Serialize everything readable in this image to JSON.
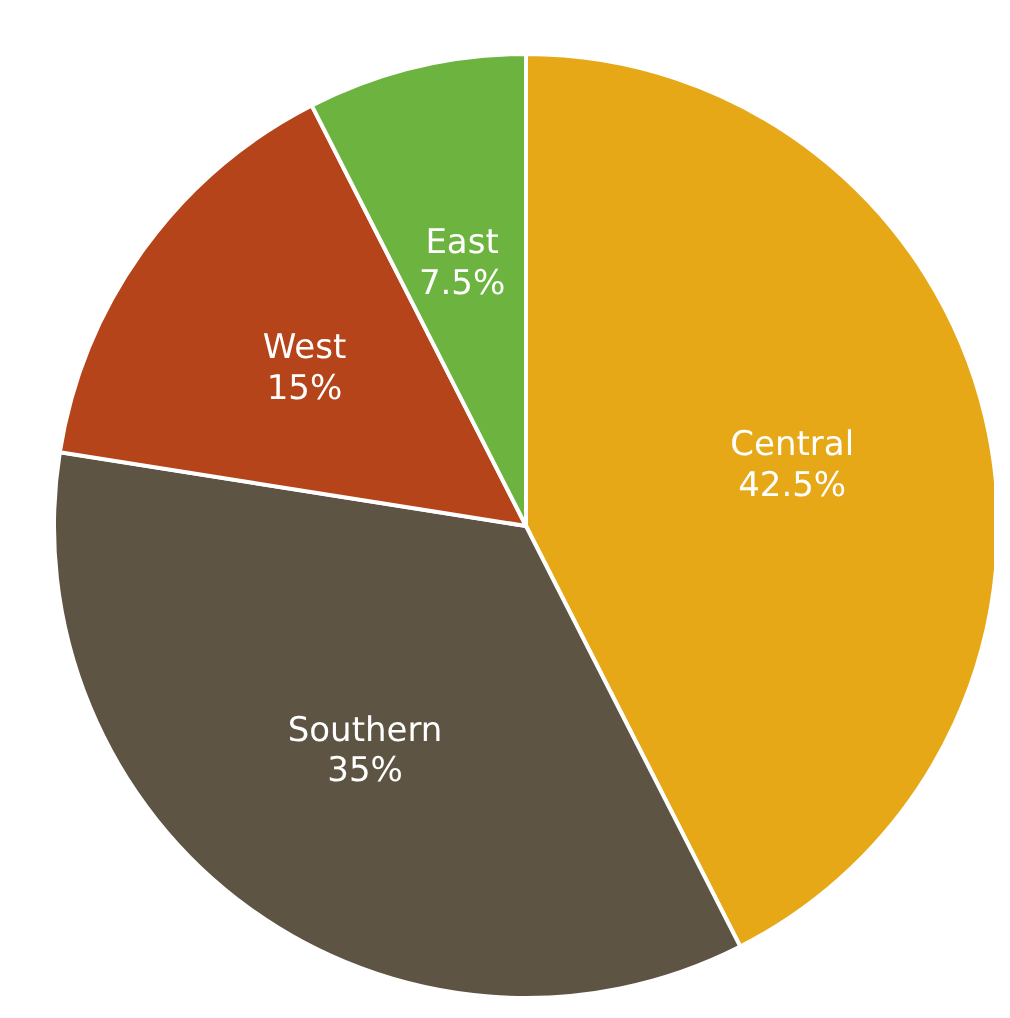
{
  "chart_data": {
    "type": "pie",
    "categories": [
      "Central",
      "Southern",
      "West",
      "East"
    ],
    "values": [
      42.5,
      35,
      15,
      7.5
    ],
    "colors": [
      "#e6a817",
      "#5e5444",
      "#b5441a",
      "#6db33f"
    ],
    "value_labels": [
      "42.5%",
      "35%",
      "15%",
      "7.5%"
    ],
    "legend": false
  }
}
